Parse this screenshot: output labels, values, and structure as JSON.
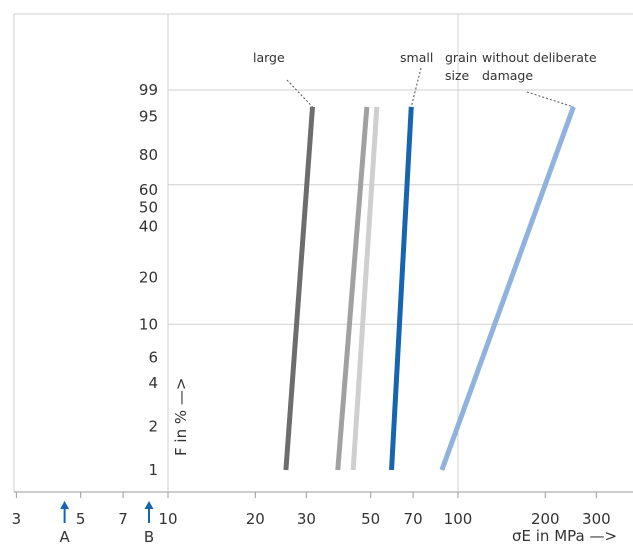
{
  "chart_data": {
    "type": "line",
    "x_scale": "log",
    "y_scale": "weibull-probability",
    "xlim": [
      3,
      400
    ],
    "ylim": [
      1,
      99.9
    ],
    "x_ticks": [
      3,
      5,
      7,
      10,
      20,
      30,
      50,
      70,
      100,
      200,
      300
    ],
    "y_ticks": [
      1,
      2,
      4,
      6,
      10,
      20,
      40,
      50,
      60,
      80,
      95,
      99
    ],
    "x_gridlines": [
      10,
      100
    ],
    "y_gridlines": [
      10,
      63.2,
      99
    ],
    "xlabel": "σE in MPa —>",
    "ylabel": "F in % —>",
    "markers": [
      {
        "label": "A",
        "x": 4.4,
        "color": "#1565b0"
      },
      {
        "label": "B",
        "x": 8.6,
        "color": "#1565b0"
      }
    ],
    "annotations": {
      "large": "large",
      "small": "small",
      "grain": "grain",
      "size": "size",
      "without_1": "without deliberate",
      "without_2": "damage"
    },
    "series": [
      {
        "x": [
          25.5,
          31.5
        ],
        "y": [
          1,
          97
        ],
        "color": "#6d6d6d"
      },
      {
        "x": [
          38.5,
          48.5
        ],
        "y": [
          1,
          97
        ],
        "color": "#a1a1a1"
      },
      {
        "x": [
          43.5,
          52.5
        ],
        "y": [
          1,
          97
        ],
        "color": "#cfcfcf"
      },
      {
        "x": [
          59,
          69
        ],
        "y": [
          1,
          97
        ],
        "color": "#1565b0"
      },
      {
        "x": [
          88,
          250
        ],
        "y": [
          1,
          97
        ],
        "color": "#8fb3dd"
      }
    ]
  }
}
